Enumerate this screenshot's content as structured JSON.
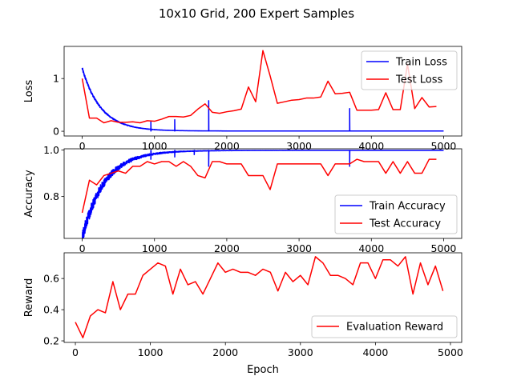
{
  "suptitle": "10x10 Grid, 200 Expert Samples",
  "colors": {
    "train": "#0000ff",
    "test": "#ff0000"
  },
  "chart_data": [
    {
      "type": "line",
      "ylabel": "Loss",
      "xlabel": "",
      "xlim": [
        -250,
        5250
      ],
      "ylim": [
        -0.09,
        1.61
      ],
      "xticks": [
        0,
        1000,
        2000,
        3000,
        4000,
        5000
      ],
      "yticks": [
        0,
        1
      ],
      "legend": "top-right",
      "series": [
        {
          "name": "Train Loss",
          "color": "#0000ff",
          "style": "noisy-decay",
          "start": 1.18,
          "floor": 0.005,
          "decay": 260,
          "noise": 0.06,
          "x_end": 5000,
          "spikes": [
            [
              950,
              0.18
            ],
            [
              1280,
              0.22
            ],
            [
              1750,
              0.58
            ],
            [
              3700,
              0.43
            ]
          ]
        },
        {
          "name": "Test Loss",
          "color": "#ff0000",
          "x": [
            0,
            100,
            200,
            300,
            400,
            500,
            600,
            700,
            800,
            900,
            1000,
            1100,
            1200,
            1300,
            1400,
            1500,
            1600,
            1700,
            1800,
            1900,
            2000,
            2100,
            2200,
            2300,
            2400,
            2500,
            2600,
            2700,
            2800,
            2900,
            3000,
            3100,
            3200,
            3300,
            3400,
            3500,
            3600,
            3700,
            3800,
            3900,
            4000,
            4100,
            4200,
            4300,
            4400,
            4500,
            4600,
            4700,
            4800,
            4900
          ],
          "y": [
            1.0,
            0.25,
            0.25,
            0.16,
            0.2,
            0.17,
            0.17,
            0.18,
            0.16,
            0.2,
            0.19,
            0.23,
            0.28,
            0.28,
            0.27,
            0.3,
            0.42,
            0.52,
            0.36,
            0.34,
            0.37,
            0.39,
            0.42,
            0.84,
            0.56,
            1.53,
            1.05,
            0.53,
            0.56,
            0.59,
            0.6,
            0.63,
            0.63,
            0.65,
            0.95,
            0.71,
            0.72,
            0.74,
            0.4,
            0.4,
            0.4,
            0.41,
            0.73,
            0.41,
            0.41,
            1.27,
            0.43,
            0.64,
            0.46,
            0.47
          ]
        }
      ]
    },
    {
      "type": "line",
      "ylabel": "Accuracy",
      "xlabel": "",
      "xlim": [
        -250,
        5250
      ],
      "ylim": [
        0.62,
        1.005
      ],
      "xticks": [
        0,
        1000,
        2000,
        3000,
        4000,
        5000
      ],
      "yticks": [
        0.8,
        1.0
      ],
      "legend": "lower-right",
      "series": [
        {
          "name": "Train Accuracy",
          "color": "#0000ff",
          "style": "noisy-rise",
          "start": 0.64,
          "ceil": 0.998,
          "decay": 300,
          "noise": 0.04,
          "x_end": 5000,
          "dips": [
            [
              950,
              0.96
            ],
            [
              1280,
              0.97
            ],
            [
              1550,
              0.98
            ],
            [
              1750,
              0.93
            ],
            [
              3700,
              0.93
            ]
          ]
        },
        {
          "name": "Test Accuracy",
          "color": "#ff0000",
          "x": [
            0,
            100,
            200,
            300,
            400,
            500,
            600,
            700,
            800,
            900,
            1000,
            1100,
            1200,
            1300,
            1400,
            1500,
            1600,
            1700,
            1800,
            1900,
            2000,
            2100,
            2200,
            2300,
            2400,
            2500,
            2600,
            2700,
            2800,
            2900,
            3000,
            3100,
            3200,
            3300,
            3400,
            3500,
            3600,
            3700,
            3800,
            3900,
            4000,
            4100,
            4200,
            4300,
            4400,
            4500,
            4600,
            4700,
            4800,
            4900
          ],
          "y": [
            0.73,
            0.87,
            0.85,
            0.89,
            0.9,
            0.91,
            0.9,
            0.93,
            0.93,
            0.95,
            0.94,
            0.95,
            0.95,
            0.93,
            0.95,
            0.93,
            0.89,
            0.88,
            0.95,
            0.95,
            0.94,
            0.94,
            0.94,
            0.89,
            0.89,
            0.89,
            0.83,
            0.94,
            0.94,
            0.94,
            0.94,
            0.94,
            0.94,
            0.94,
            0.89,
            0.94,
            0.94,
            0.94,
            0.96,
            0.95,
            0.95,
            0.95,
            0.9,
            0.95,
            0.9,
            0.95,
            0.9,
            0.9,
            0.96,
            0.96
          ]
        }
      ]
    },
    {
      "type": "line",
      "ylabel": "Reward",
      "xlabel": "Epoch",
      "xlim": [
        -150,
        5150
      ],
      "ylim": [
        0.19,
        0.765
      ],
      "xticks": [
        0,
        1000,
        2000,
        3000,
        4000,
        5000
      ],
      "yticks": [
        0.2,
        0.4,
        0.6
      ],
      "legend": "lower-right",
      "series": [
        {
          "name": "Evaluation Reward",
          "color": "#ff0000",
          "x": [
            0,
            100,
            200,
            300,
            400,
            500,
            600,
            700,
            800,
            900,
            1000,
            1100,
            1200,
            1300,
            1400,
            1500,
            1600,
            1700,
            1800,
            1900,
            2000,
            2100,
            2200,
            2300,
            2400,
            2500,
            2600,
            2700,
            2800,
            2900,
            3000,
            3100,
            3200,
            3300,
            3400,
            3500,
            3600,
            3700,
            3800,
            3900,
            4000,
            4100,
            4200,
            4300,
            4400,
            4500,
            4600,
            4700,
            4800,
            4900
          ],
          "y": [
            0.32,
            0.22,
            0.36,
            0.4,
            0.38,
            0.58,
            0.4,
            0.5,
            0.5,
            0.62,
            0.66,
            0.7,
            0.68,
            0.5,
            0.66,
            0.56,
            0.58,
            0.5,
            0.6,
            0.7,
            0.64,
            0.66,
            0.64,
            0.64,
            0.62,
            0.66,
            0.64,
            0.52,
            0.64,
            0.58,
            0.62,
            0.56,
            0.74,
            0.7,
            0.62,
            0.62,
            0.6,
            0.56,
            0.7,
            0.7,
            0.6,
            0.72,
            0.72,
            0.68,
            0.74,
            0.5,
            0.7,
            0.56,
            0.68,
            0.52
          ]
        }
      ]
    }
  ]
}
